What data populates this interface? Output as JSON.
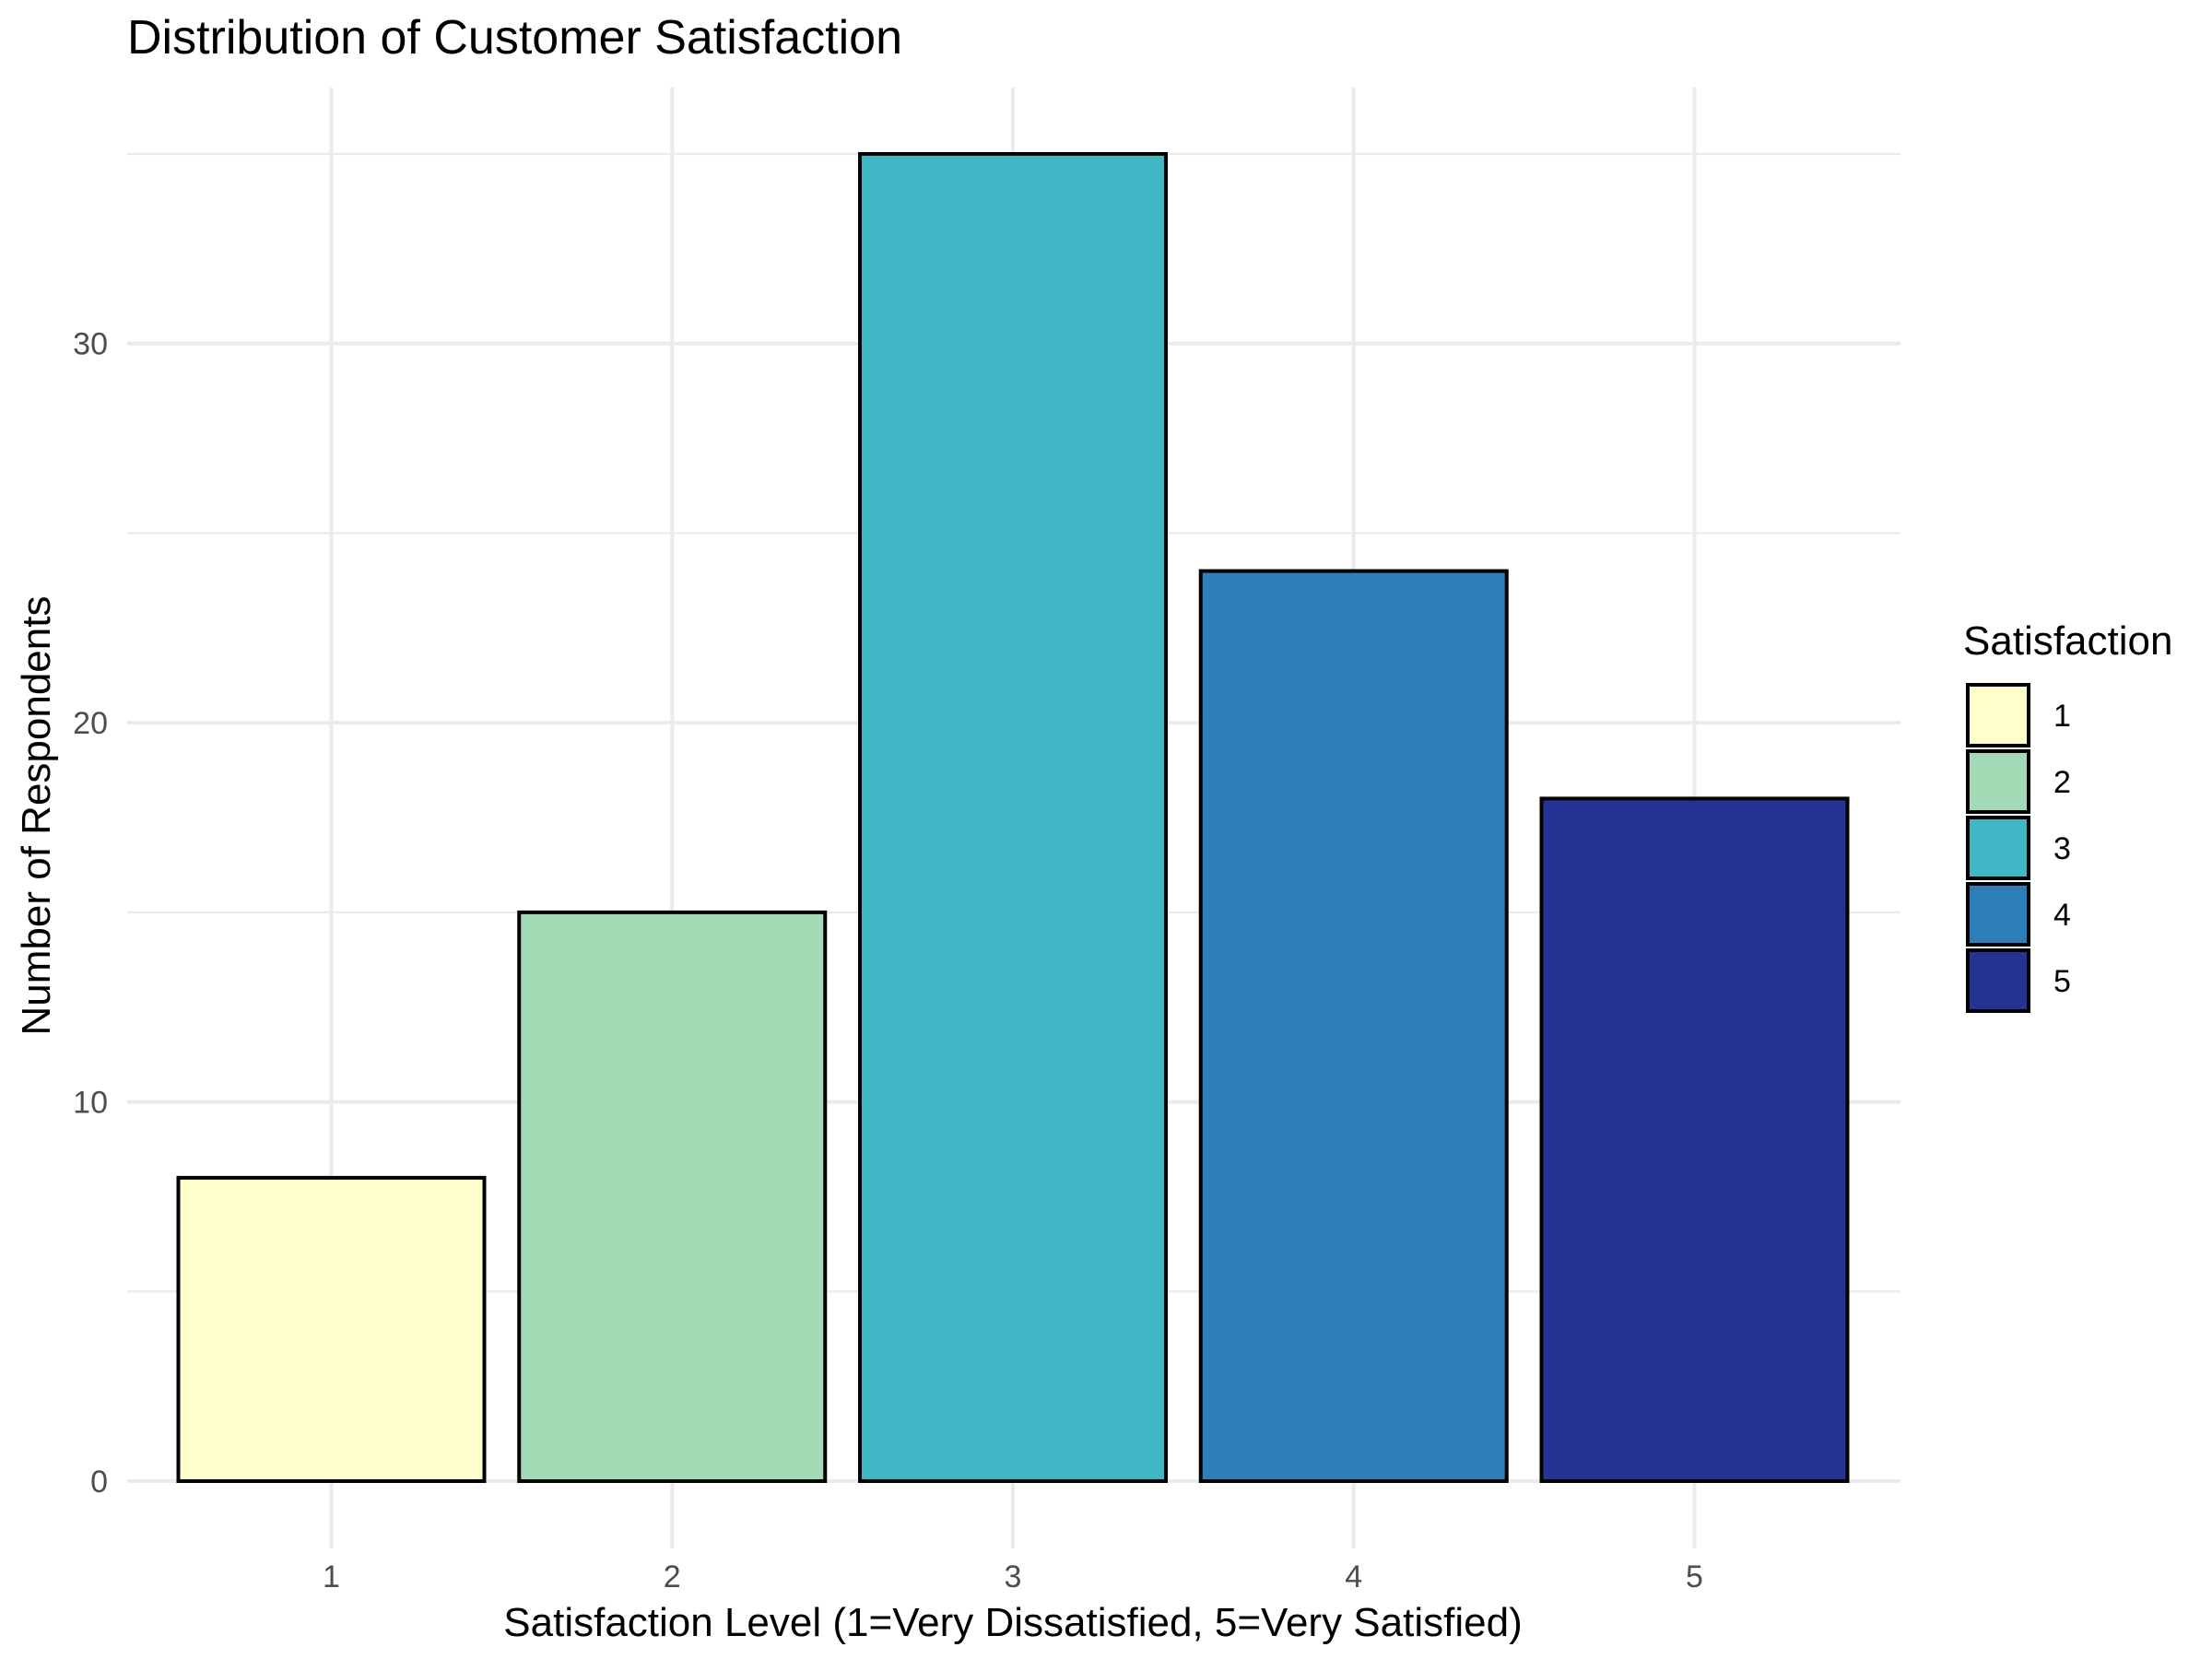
{
  "chart_data": {
    "type": "bar",
    "title": "Distribution of Customer Satisfaction",
    "xlabel": "Satisfaction Level (1=Very Dissatisfied, 5=Very Satisfied)",
    "ylabel": "Number of Respondents",
    "categories": [
      "1",
      "2",
      "3",
      "4",
      "5"
    ],
    "values": [
      8,
      15,
      35,
      24,
      18
    ],
    "colors": [
      "#ffffcc",
      "#a1dab4",
      "#41b6c4",
      "#2c7fb8",
      "#253494"
    ],
    "bar_outline_color": "#000000",
    "ylim": [
      0,
      36.75
    ],
    "y_ticks": [
      0,
      10,
      20,
      30
    ],
    "y_tick_labels": [
      "0",
      "10",
      "20",
      "30"
    ],
    "y_minor_ticks": [
      5,
      15,
      25,
      35
    ],
    "grid": true,
    "legend": {
      "title": "Satisfaction",
      "position": "right",
      "entries": [
        "1",
        "2",
        "3",
        "4",
        "5"
      ]
    }
  }
}
